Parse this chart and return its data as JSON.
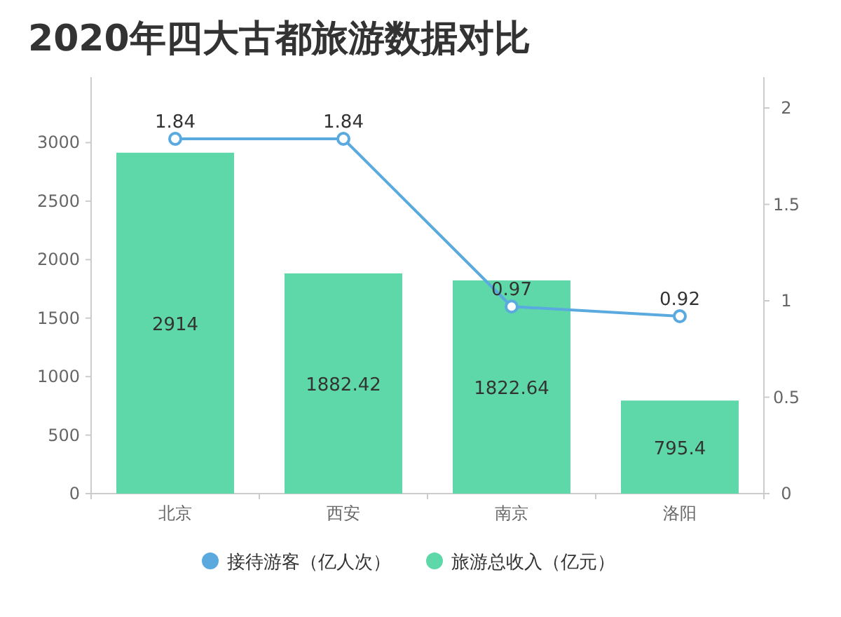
{
  "chart_data": {
    "type": "bar",
    "title": "2020年四大古都旅游数据对比",
    "categories": [
      "北京",
      "西安",
      "南京",
      "洛阳"
    ],
    "series": [
      {
        "name": "接待游客（亿人次）",
        "type": "line",
        "axis": "y2",
        "color": "#5aaadf",
        "values": [
          1.84,
          1.84,
          0.97,
          0.92
        ]
      },
      {
        "name": "旅游总收入（亿元）",
        "color": "#5fd8a9",
        "values": [
          2914,
          1882.42,
          1822.64,
          795.4
        ]
      }
    ],
    "ylim": [
      0,
      3560
    ],
    "yticks": [
      0,
      500,
      1000,
      1500,
      2000,
      2500,
      3000
    ],
    "y2lim": [
      0,
      2.16
    ],
    "y2ticks": [
      0,
      0.5,
      1,
      1.5,
      2
    ],
    "data_labels": true,
    "legend": "bottom",
    "marker": "circle",
    "grid": false
  }
}
